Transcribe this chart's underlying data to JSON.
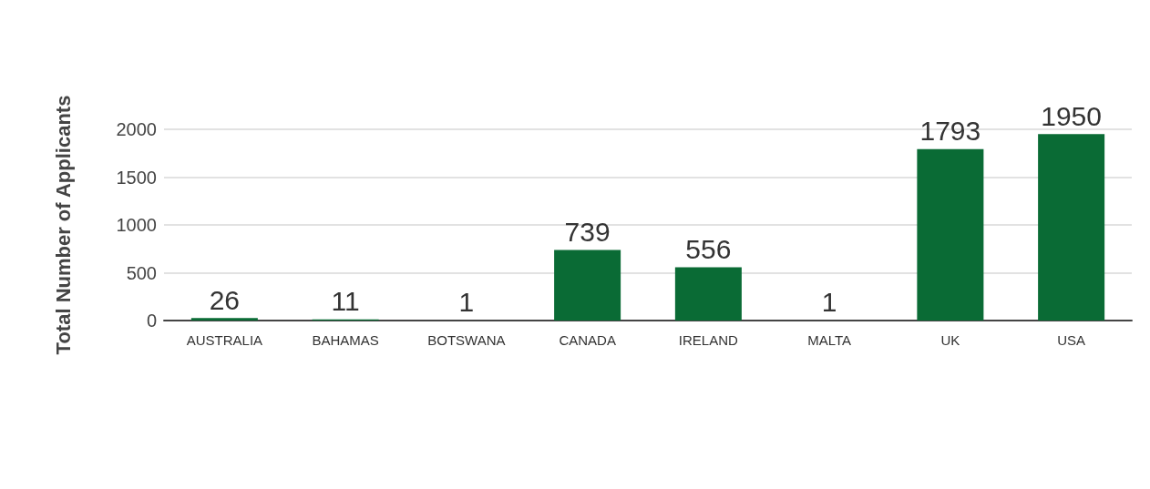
{
  "chart_data": {
    "type": "bar",
    "ylabel": "Total Number of Applicants",
    "categories": [
      "AUSTRALIA",
      "BAHAMAS",
      "BOTSWANA",
      "CANADA",
      "IRELAND",
      "MALTA",
      "UK",
      "USA"
    ],
    "values": [
      26,
      11,
      1,
      739,
      556,
      1,
      1793,
      1950
    ],
    "color": "#0a6b35",
    "ylim": [
      0,
      2000
    ],
    "yticks": [
      0,
      500,
      1000,
      1500,
      2000
    ],
    "grid": "y",
    "data_labels": true
  }
}
